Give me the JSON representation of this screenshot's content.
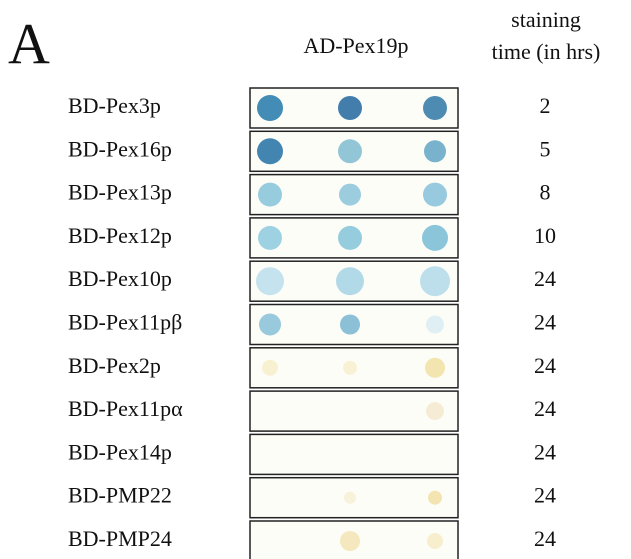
{
  "panel_label": "A",
  "column_header": "AD-Pex19p",
  "time_header": {
    "line1": "staining",
    "line2": "time (in hrs)"
  },
  "rows": [
    {
      "label": "BD-Pex3p",
      "time": 2
    },
    {
      "label": "BD-Pex16p",
      "time": 5
    },
    {
      "label": "BD-Pex13p",
      "time": 8
    },
    {
      "label": "BD-Pex12p",
      "time": 10
    },
    {
      "label": "BD-Pex10p",
      "time": 24
    },
    {
      "label": "BD-Pex11pβ",
      "time": 24
    },
    {
      "label": "BD-Pex2p",
      "time": 24
    },
    {
      "label": "BD-Pex11pα",
      "time": 24
    },
    {
      "label": "BD-Pex14p",
      "time": 24
    },
    {
      "label": "BD-PMP22",
      "time": 24
    },
    {
      "label": "BD-PMP24",
      "time": 24
    }
  ]
}
